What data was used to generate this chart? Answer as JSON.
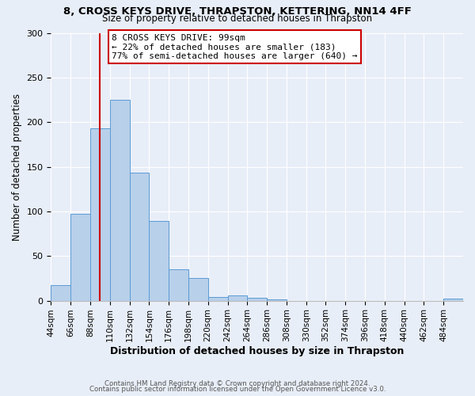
{
  "title": "8, CROSS KEYS DRIVE, THRAPSTON, KETTERING, NN14 4FF",
  "subtitle": "Size of property relative to detached houses in Thrapston",
  "xlabel": "Distribution of detached houses by size in Thrapston",
  "ylabel": "Number of detached properties",
  "bin_edges": [
    44,
    66,
    88,
    110,
    132,
    154,
    176,
    198,
    220,
    242,
    264,
    286,
    308,
    330,
    352,
    374,
    396,
    418,
    440,
    462,
    484,
    506
  ],
  "bar_heights": [
    17,
    97,
    193,
    225,
    143,
    89,
    35,
    25,
    4,
    6,
    3,
    1,
    0,
    0,
    0,
    0,
    0,
    0,
    0,
    0,
    2
  ],
  "bar_facecolor": "#b8d0ea",
  "bar_edgecolor": "#5b9bd5",
  "property_value": 99,
  "vline_color": "#cc0000",
  "annotation_text": "8 CROSS KEYS DRIVE: 99sqm\n← 22% of detached houses are smaller (183)\n77% of semi-detached houses are larger (640) →",
  "annotation_box_edgecolor": "#cc0000",
  "annotation_box_facecolor": "#ffffff",
  "ylim": [
    0,
    300
  ],
  "yticks": [
    0,
    50,
    100,
    150,
    200,
    250,
    300
  ],
  "footer_line1": "Contains HM Land Registry data © Crown copyright and database right 2024.",
  "footer_line2": "Contains public sector information licensed under the Open Government Licence v3.0.",
  "bg_color": "#e8eef8",
  "plot_bg_color": "#e8eef8"
}
